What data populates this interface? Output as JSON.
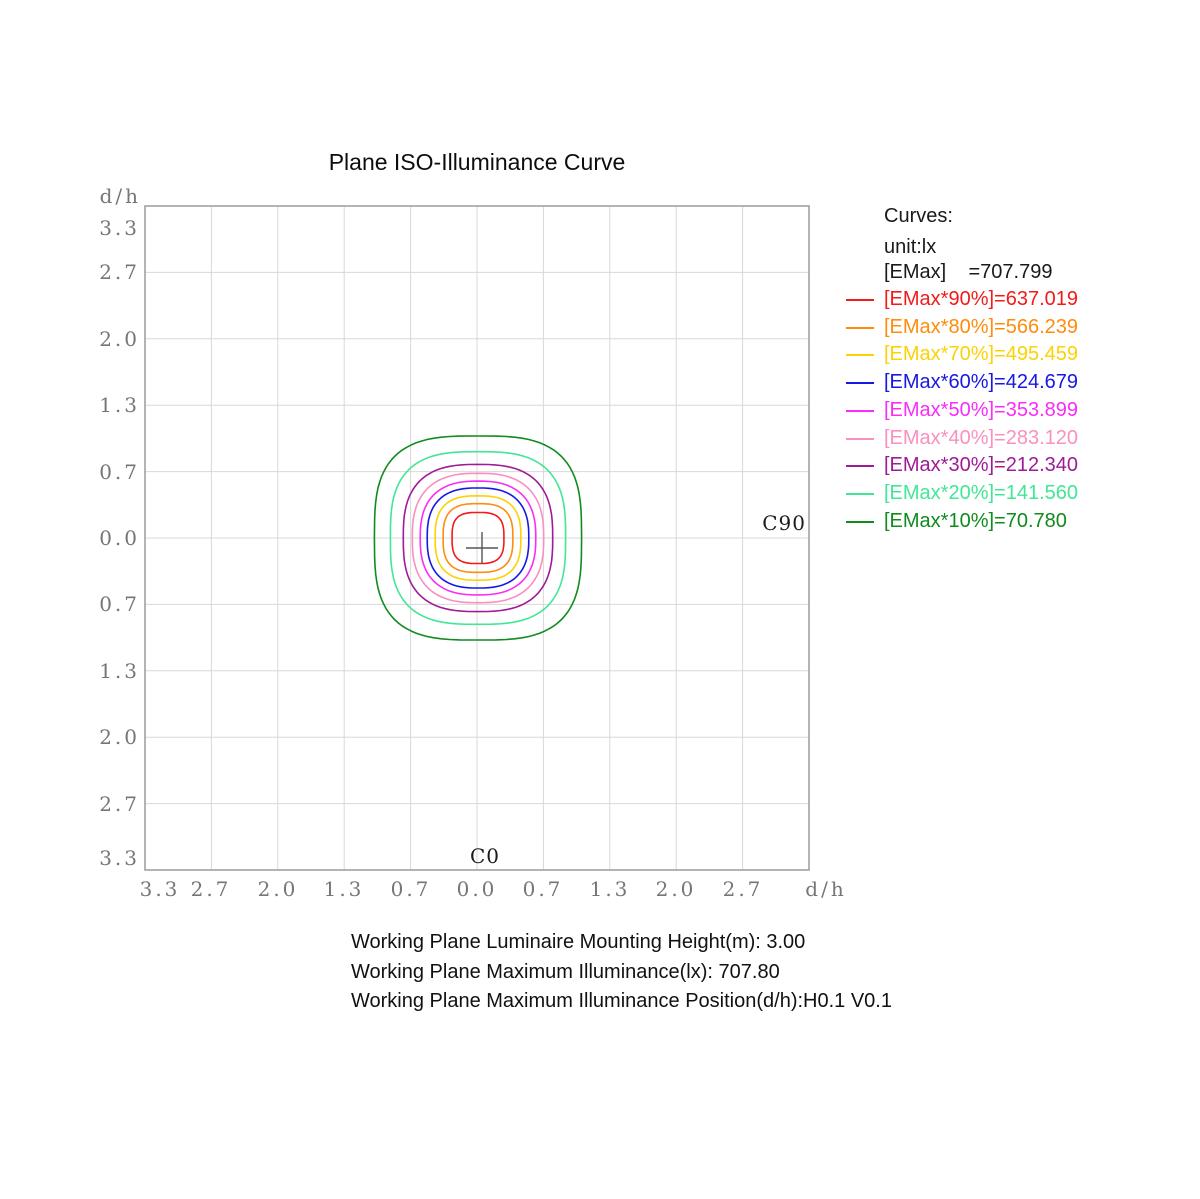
{
  "title": "Plane ISO-Illuminance Curve",
  "axes": {
    "unit_label": "d/h",
    "y_ticks": [
      "3.3",
      "2.7",
      "2.0",
      "1.3",
      "0.7",
      "0.0",
      "0.7",
      "1.3",
      "2.0",
      "2.7",
      "3.3"
    ],
    "x_ticks": [
      "3.3",
      "2.7",
      "2.0",
      "1.3",
      "0.7",
      "0.0",
      "0.7",
      "1.3",
      "2.0",
      "2.7",
      "d/h"
    ]
  },
  "plot_labels": {
    "c90": "C90",
    "c0": "C0"
  },
  "legend": {
    "title": "Curves:",
    "unit": "unit:lx",
    "emax_label": "[EMax]    =707.799"
  },
  "footer": {
    "lines": [
      "Working Plane Luminaire Mounting Height(m): 3.00",
      "Working Plane Maximum Illuminance(lx): 707.80",
      "Working Plane Maximum Illuminance Position(d/h):H0.1 V0.1"
    ]
  },
  "chart_data": {
    "type": "contour",
    "title": "Plane ISO-Illuminance Curve",
    "xlabel": "d/h",
    "ylabel": "d/h",
    "unit": "lx",
    "grid": true,
    "legend_position": "right",
    "axis_range_dh": [
      -3.33,
      3.33
    ],
    "axis_tick_values": [
      -3.3,
      -2.7,
      -2.0,
      -1.3,
      -0.7,
      0.0,
      0.7,
      1.3,
      2.0,
      2.7,
      3.3
    ],
    "emax_lx": 707.799,
    "emax_position_dh": "H0.1 V0.1",
    "mounting_height_m": 3.0,
    "max_illuminance_lx": 707.8,
    "levels": [
      {
        "label": "[EMax*90%]=637.019",
        "percent": 90,
        "value_lx": 637.019,
        "color": "#f31a1a",
        "radius_dh": 0.26,
        "shape_exp": 3.1
      },
      {
        "label": "[EMax*80%]=566.239",
        "percent": 80,
        "value_lx": 566.239,
        "color": "#ff8c0d",
        "radius_dh": 0.35,
        "shape_exp": 2.9
      },
      {
        "label": "[EMax*70%]=495.459",
        "percent": 70,
        "value_lx": 495.459,
        "color": "#fcd203",
        "radius_dh": 0.43,
        "shape_exp": 2.75
      },
      {
        "label": "[EMax*60%]=424.679",
        "percent": 60,
        "value_lx": 424.679,
        "color": "#1717e6",
        "radius_dh": 0.51,
        "shape_exp": 2.6
      },
      {
        "label": "[EMax*50%]=353.899",
        "percent": 50,
        "value_lx": 353.899,
        "color": "#f92cf9",
        "radius_dh": 0.58,
        "shape_exp": 2.55
      },
      {
        "label": "[EMax*40%]=283.120",
        "percent": 40,
        "value_lx": 283.12,
        "color": "#fa8fc0",
        "radius_dh": 0.66,
        "shape_exp": 2.6
      },
      {
        "label": "[EMax*30%]=212.340",
        "percent": 30,
        "value_lx": 212.34,
        "color": "#a01a98",
        "radius_dh": 0.75,
        "shape_exp": 2.75
      },
      {
        "label": "[EMax*20%]=141.560",
        "percent": 20,
        "value_lx": 141.56,
        "color": "#41e796",
        "radius_dh": 0.88,
        "shape_exp": 2.95
      },
      {
        "label": "[EMax*10%]=70.780",
        "percent": 10,
        "value_lx": 70.78,
        "color": "#118b1e",
        "radius_dh": 1.04,
        "shape_exp": 3.15
      }
    ]
  }
}
